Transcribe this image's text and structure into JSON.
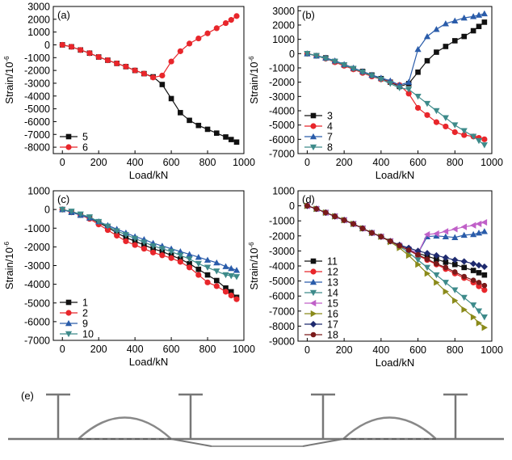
{
  "colors": {
    "black": "#111111",
    "red": "#e8262b",
    "blue": "#2a5caa",
    "teal": "#3d8a8a",
    "magenta": "#c060c8",
    "olive": "#8a8a1a",
    "navy": "#1e2a6e",
    "maroon": "#7a1a1a",
    "line_gray": "#777777",
    "dash_gray": "#555555"
  },
  "chart_data": [
    {
      "panel": "(a)",
      "type": "line",
      "xlabel": "Load/kN",
      "ylabel": "Strain/10",
      "ylabel_sup": "-6",
      "xlim": [
        -50,
        1000
      ],
      "ylim": [
        -8500,
        3000
      ],
      "xticks": [
        "0",
        "200",
        "400",
        "600",
        "800",
        "1000"
      ],
      "yticks": [
        "3000",
        "2000",
        "1000",
        "0",
        "-1000",
        "-2000",
        "-3000",
        "-4000",
        "-5000",
        "-6000",
        "-7000",
        "-8000"
      ],
      "legend": "bottom-left",
      "series": [
        {
          "name": "5",
          "color": "black",
          "marker": "square",
          "x": [
            0,
            50,
            100,
            150,
            200,
            250,
            300,
            350,
            400,
            450,
            500,
            550,
            600,
            650,
            700,
            750,
            800,
            850,
            900,
            930,
            960
          ],
          "y": [
            0,
            -150,
            -400,
            -650,
            -950,
            -1200,
            -1450,
            -1700,
            -2000,
            -2250,
            -2500,
            -3100,
            -4200,
            -5300,
            -5900,
            -6300,
            -6600,
            -6900,
            -7200,
            -7400,
            -7600
          ]
        },
        {
          "name": "6",
          "color": "red",
          "marker": "circle",
          "x": [
            0,
            50,
            100,
            150,
            200,
            250,
            300,
            350,
            400,
            450,
            500,
            550,
            600,
            650,
            700,
            750,
            800,
            850,
            900,
            930,
            960
          ],
          "y": [
            0,
            -150,
            -400,
            -650,
            -950,
            -1200,
            -1450,
            -1700,
            -2000,
            -2250,
            -2550,
            -2400,
            -1300,
            -500,
            100,
            500,
            900,
            1300,
            1700,
            1950,
            2250
          ]
        }
      ]
    },
    {
      "panel": "(b)",
      "type": "line",
      "xlabel": "Load/kN",
      "ylabel": "Strain/10",
      "ylabel_sup": "-6",
      "xlim": [
        -50,
        1000
      ],
      "ylim": [
        -7000,
        3300
      ],
      "xticks": [
        "0",
        "200",
        "400",
        "600",
        "800",
        "1000"
      ],
      "yticks": [
        "3000",
        "2000",
        "1000",
        "0",
        "-1000",
        "-2000",
        "-3000",
        "-4000",
        "-5000",
        "-6000",
        "-7000"
      ],
      "legend": "bottom-left",
      "series": [
        {
          "name": "3",
          "color": "black",
          "marker": "square",
          "x": [
            0,
            50,
            100,
            150,
            200,
            250,
            300,
            350,
            400,
            450,
            500,
            550,
            600,
            650,
            700,
            750,
            800,
            850,
            900,
            930,
            960
          ],
          "y": [
            0,
            -150,
            -300,
            -550,
            -800,
            -1050,
            -1250,
            -1500,
            -1750,
            -2000,
            -2300,
            -2100,
            -1300,
            -500,
            100,
            500,
            900,
            1200,
            1600,
            1900,
            2200
          ]
        },
        {
          "name": "4",
          "color": "red",
          "marker": "circle",
          "x": [
            0,
            50,
            100,
            150,
            200,
            250,
            300,
            350,
            400,
            450,
            500,
            550,
            600,
            650,
            700,
            750,
            800,
            850,
            900,
            930,
            960
          ],
          "y": [
            0,
            -150,
            -350,
            -600,
            -850,
            -1100,
            -1350,
            -1600,
            -1800,
            -2000,
            -2200,
            -2800,
            -3800,
            -4300,
            -4800,
            -5100,
            -5500,
            -5700,
            -5800,
            -5900,
            -6000
          ]
        },
        {
          "name": "7",
          "color": "blue",
          "marker": "triangle-up",
          "x": [
            0,
            50,
            100,
            150,
            200,
            250,
            300,
            350,
            400,
            450,
            500,
            550,
            600,
            650,
            700,
            750,
            800,
            850,
            900,
            930,
            960
          ],
          "y": [
            0,
            -150,
            -300,
            -500,
            -750,
            -1000,
            -1250,
            -1500,
            -1700,
            -1900,
            -2200,
            -2000,
            300,
            1200,
            1700,
            2100,
            2300,
            2500,
            2600,
            2700,
            2800
          ]
        },
        {
          "name": "8",
          "color": "teal",
          "marker": "triangle-down",
          "x": [
            0,
            50,
            100,
            150,
            200,
            250,
            300,
            350,
            400,
            450,
            500,
            550,
            600,
            650,
            700,
            750,
            800,
            850,
            900,
            930,
            960
          ],
          "y": [
            0,
            -150,
            -350,
            -550,
            -800,
            -1050,
            -1300,
            -1550,
            -1800,
            -2100,
            -2400,
            -2500,
            -3000,
            -3500,
            -4000,
            -4500,
            -5000,
            -5400,
            -5800,
            -6100,
            -6400
          ]
        }
      ]
    },
    {
      "panel": "(c)",
      "type": "line",
      "xlabel": "Load/kN",
      "ylabel": "Strain/10",
      "ylabel_sup": "-6",
      "xlim": [
        -50,
        1000
      ],
      "ylim": [
        -7000,
        1000
      ],
      "xticks": [
        "0",
        "200",
        "400",
        "600",
        "800",
        "1000"
      ],
      "yticks": [
        "1000",
        "0",
        "-1000",
        "-2000",
        "-3000",
        "-4000",
        "-5000",
        "-6000",
        "-7000"
      ],
      "legend": "bottom-left",
      "series": [
        {
          "name": "1",
          "color": "black",
          "marker": "square",
          "x": [
            0,
            50,
            100,
            150,
            200,
            250,
            300,
            350,
            400,
            450,
            500,
            550,
            600,
            650,
            700,
            750,
            800,
            850,
            900,
            930,
            960
          ],
          "y": [
            0,
            -150,
            -300,
            -450,
            -700,
            -950,
            -1250,
            -1500,
            -1700,
            -1900,
            -2100,
            -2250,
            -2450,
            -2650,
            -2900,
            -3200,
            -3500,
            -3800,
            -4200,
            -4400,
            -4700
          ]
        },
        {
          "name": "2",
          "color": "red",
          "marker": "circle",
          "x": [
            0,
            50,
            100,
            150,
            200,
            250,
            300,
            350,
            400,
            450,
            500,
            550,
            600,
            650,
            700,
            750,
            800,
            850,
            900,
            930,
            960
          ],
          "y": [
            0,
            -150,
            -300,
            -500,
            -800,
            -1100,
            -1400,
            -1700,
            -1900,
            -2100,
            -2300,
            -2450,
            -2600,
            -2800,
            -3100,
            -3500,
            -3900,
            -4100,
            -4400,
            -4600,
            -4800
          ]
        },
        {
          "name": "9",
          "color": "blue",
          "marker": "triangle-up",
          "x": [
            0,
            50,
            100,
            150,
            200,
            250,
            300,
            350,
            400,
            450,
            500,
            550,
            600,
            650,
            700,
            750,
            800,
            850,
            900,
            930,
            960
          ],
          "y": [
            0,
            -150,
            -300,
            -450,
            -650,
            -850,
            -1050,
            -1250,
            -1450,
            -1600,
            -1800,
            -1950,
            -2100,
            -2250,
            -2400,
            -2550,
            -2700,
            -2850,
            -3050,
            -3150,
            -3250
          ]
        },
        {
          "name": "10",
          "color": "teal",
          "marker": "triangle-down",
          "x": [
            0,
            50,
            100,
            150,
            200,
            250,
            300,
            350,
            400,
            450,
            500,
            550,
            600,
            650,
            700,
            750,
            800,
            850,
            900,
            930,
            960
          ],
          "y": [
            0,
            -100,
            -250,
            -400,
            -650,
            -900,
            -1150,
            -1350,
            -1550,
            -1750,
            -1950,
            -2100,
            -2250,
            -2450,
            -2650,
            -2900,
            -3100,
            -3300,
            -3500,
            -3550,
            -3600
          ]
        }
      ]
    },
    {
      "panel": "(d)",
      "type": "line",
      "xlabel": "Load/kN",
      "ylabel": "Strain/10",
      "ylabel_sup": "-6",
      "xlim": [
        -50,
        1000
      ],
      "ylim": [
        -9000,
        1000
      ],
      "xticks": [
        "0",
        "200",
        "400",
        "600",
        "800",
        "1000"
      ],
      "yticks": [
        "1000",
        "0",
        "-1000",
        "-2000",
        "-3000",
        "-4000",
        "-5000",
        "-6000",
        "-7000",
        "-8000",
        "-9000"
      ],
      "legend": "bottom-left",
      "series": [
        {
          "name": "11",
          "color": "black",
          "marker": "square",
          "x": [
            0,
            50,
            100,
            150,
            200,
            250,
            300,
            350,
            400,
            450,
            500,
            550,
            600,
            650,
            700,
            750,
            800,
            850,
            900,
            930,
            960
          ],
          "y": [
            0,
            -200,
            -450,
            -700,
            -950,
            -1200,
            -1500,
            -1800,
            -2050,
            -2350,
            -2650,
            -2900,
            -3150,
            -3350,
            -3550,
            -3750,
            -3900,
            -4100,
            -4300,
            -4450,
            -4600
          ]
        },
        {
          "name": "12",
          "color": "red",
          "marker": "circle",
          "x": [
            0,
            50,
            100,
            150,
            200,
            250,
            300,
            350,
            400,
            450,
            500,
            550,
            600,
            650,
            700,
            750,
            800,
            850,
            900,
            930,
            960
          ],
          "y": [
            0,
            -200,
            -450,
            -700,
            -950,
            -1200,
            -1500,
            -1800,
            -2050,
            -2350,
            -2650,
            -2950,
            -3300,
            -3600,
            -3900,
            -4200,
            -4500,
            -4800,
            -5100,
            -5350,
            -5600
          ]
        },
        {
          "name": "13",
          "color": "blue",
          "marker": "triangle-up",
          "x": [
            0,
            50,
            100,
            150,
            200,
            250,
            300,
            350,
            400,
            450,
            500,
            550,
            600,
            650,
            700,
            750,
            800,
            850,
            900,
            930,
            960
          ],
          "y": [
            0,
            -200,
            -450,
            -700,
            -950,
            -1200,
            -1500,
            -1800,
            -2050,
            -2350,
            -2650,
            -2900,
            -3150,
            -2050,
            -2000,
            -2050,
            -2100,
            -1950,
            -1900,
            -1800,
            -1700
          ]
        },
        {
          "name": "14",
          "color": "teal",
          "marker": "triangle-down",
          "x": [
            0,
            50,
            100,
            150,
            200,
            250,
            300,
            350,
            400,
            450,
            500,
            550,
            600,
            650,
            700,
            750,
            800,
            850,
            900,
            930,
            960
          ],
          "y": [
            0,
            -200,
            -450,
            -700,
            -950,
            -1200,
            -1500,
            -1800,
            -2050,
            -2350,
            -2700,
            -3100,
            -3600,
            -4100,
            -4600,
            -5100,
            -5600,
            -6100,
            -6600,
            -7000,
            -7400
          ]
        },
        {
          "name": "15",
          "color": "magenta",
          "marker": "triangle-left",
          "x": [
            0,
            50,
            100,
            150,
            200,
            250,
            300,
            350,
            400,
            450,
            500,
            550,
            600,
            650,
            700,
            750,
            800,
            850,
            900,
            930,
            960
          ],
          "y": [
            0,
            -200,
            -450,
            -700,
            -950,
            -1200,
            -1500,
            -1800,
            -2050,
            -2350,
            -2650,
            -2900,
            -3150,
            -1900,
            -1850,
            -1700,
            -1550,
            -1400,
            -1300,
            -1200,
            -1100
          ]
        },
        {
          "name": "16",
          "color": "olive",
          "marker": "triangle-right",
          "x": [
            0,
            50,
            100,
            150,
            200,
            250,
            300,
            350,
            400,
            450,
            500,
            550,
            600,
            650,
            700,
            750,
            800,
            850,
            900,
            930,
            960
          ],
          "y": [
            0,
            -200,
            -450,
            -700,
            -950,
            -1200,
            -1500,
            -1800,
            -2050,
            -2400,
            -2800,
            -3300,
            -3900,
            -4500,
            -5100,
            -5700,
            -6300,
            -6900,
            -7400,
            -7800,
            -8100
          ]
        },
        {
          "name": "17",
          "color": "navy",
          "marker": "diamond",
          "x": [
            0,
            50,
            100,
            150,
            200,
            250,
            300,
            350,
            400,
            450,
            500,
            550,
            600,
            650,
            700,
            750,
            800,
            850,
            900,
            930,
            960
          ],
          "y": [
            0,
            -200,
            -450,
            -700,
            -950,
            -1200,
            -1500,
            -1800,
            -2050,
            -2350,
            -2600,
            -2800,
            -3000,
            -3150,
            -3300,
            -3450,
            -3600,
            -3700,
            -3850,
            -3950,
            -4050
          ]
        },
        {
          "name": "18",
          "color": "maroon",
          "marker": "hexagon",
          "x": [
            0,
            50,
            100,
            150,
            200,
            250,
            300,
            350,
            400,
            450,
            500,
            550,
            600,
            650,
            700,
            750,
            800,
            850,
            900,
            930,
            960
          ],
          "y": [
            0,
            -200,
            -450,
            -700,
            -950,
            -1200,
            -1500,
            -1800,
            -2050,
            -2350,
            -2650,
            -2950,
            -3250,
            -3550,
            -3850,
            -4100,
            -4400,
            -4700,
            -4950,
            -5100,
            -5300
          ]
        }
      ]
    }
  ],
  "schematic": {
    "label": "(e)",
    "description_type": "diagram",
    "column_count": 4,
    "arch_count": 2
  }
}
